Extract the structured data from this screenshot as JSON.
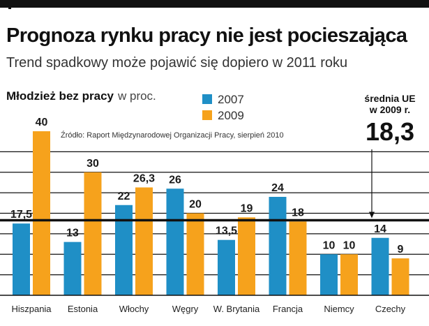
{
  "header": {
    "title": "Prognoza rynku pracy nie jest pocieszająca",
    "subtitle": "Trend spadkowy może pojawić się dopiero w 2011 roku"
  },
  "legend_note": {
    "label": "Młodzież bez pracy",
    "unit": "w proc."
  },
  "source": "Źródło: Raport Międzynarodowej Organizacji Pracy, sierpień 2010",
  "average": {
    "label_line1": "średnia UE",
    "label_line2": "w 2009 r.",
    "value": "18,3",
    "numeric": 18.3
  },
  "colors": {
    "series_2007": "#1f8fc6",
    "series_2009": "#f6a21c",
    "average_line": "#111111",
    "grid": "#111111"
  },
  "chart_data": {
    "type": "bar",
    "categories": [
      "Hiszpania",
      "Estonia",
      "Włochy",
      "Węgry",
      "W. Brytania",
      "Francja",
      "Niemcy",
      "Czechy"
    ],
    "series": [
      {
        "name": "2007",
        "values": [
          17.5,
          13,
          22,
          26,
          13.5,
          24,
          10,
          14
        ],
        "labels": [
          "17,5",
          "13",
          "22",
          "26",
          "13,5",
          "24",
          "10",
          "14"
        ]
      },
      {
        "name": "2009",
        "values": [
          40,
          30,
          26.3,
          20,
          19,
          18,
          10,
          9
        ],
        "labels": [
          "40",
          "30",
          "26,3",
          "20",
          "19",
          "18",
          "10",
          "9"
        ]
      }
    ],
    "ylim": [
      0,
      40
    ],
    "grid": true,
    "reference_line": 18.3
  }
}
